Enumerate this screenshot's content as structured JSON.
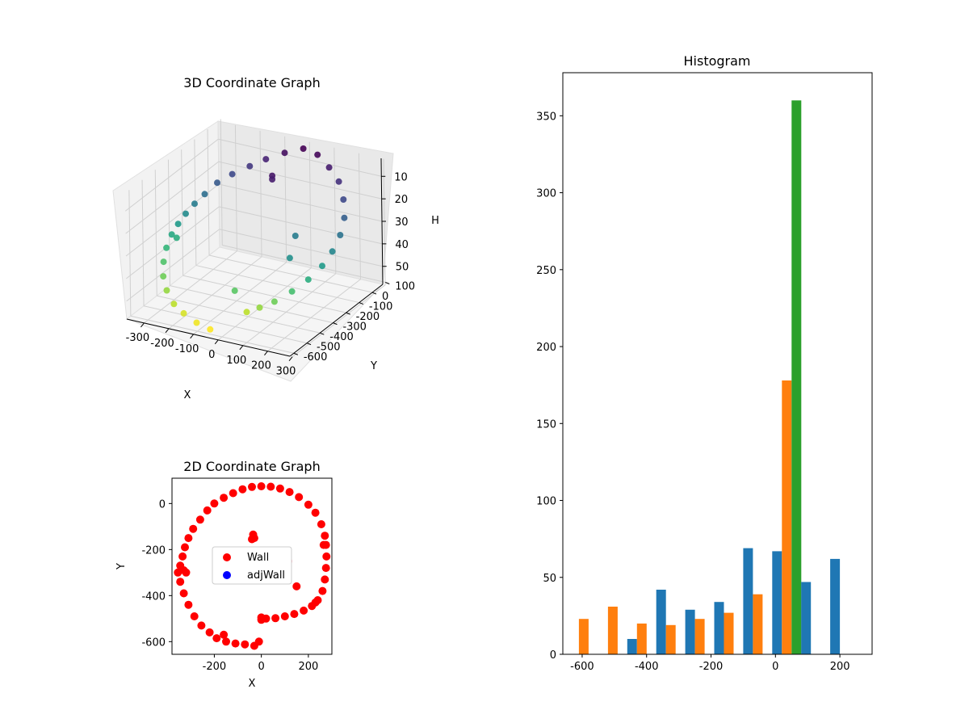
{
  "chart_data": [
    {
      "type": "scatter",
      "projection": "3d",
      "title": "3D Coordinate Graph",
      "xlabel": "X",
      "ylabel": "Y",
      "zlabel": "H",
      "xticks": [
        -300,
        -200,
        -100,
        0,
        100,
        200,
        300
      ],
      "yticks": [
        100,
        0,
        -100,
        -200,
        -300,
        -400,
        -500,
        -600
      ],
      "zticks": [
        10,
        20,
        30,
        40,
        50
      ],
      "xlim": [
        -370,
        290
      ],
      "ylim": [
        -630,
        80
      ],
      "zlim": [
        2,
        58
      ],
      "zaxis_inverted": true,
      "colormap": "viridis",
      "grid": true,
      "points": [
        [
          -20,
          70,
          5
        ],
        [
          -80,
          40,
          7
        ],
        [
          -140,
          10,
          10
        ],
        [
          -190,
          -20,
          13
        ],
        [
          -240,
          -60,
          16
        ],
        [
          -280,
          -100,
          19
        ],
        [
          -310,
          -140,
          23
        ],
        [
          -330,
          -180,
          26
        ],
        [
          -345,
          -220,
          29
        ],
        [
          -355,
          -260,
          32
        ],
        [
          -360,
          -300,
          35
        ],
        [
          -350,
          -360,
          38
        ],
        [
          -330,
          -420,
          41
        ],
        [
          -300,
          -480,
          44
        ],
        [
          -260,
          -530,
          47
        ],
        [
          -210,
          -570,
          50
        ],
        [
          -160,
          -590,
          52
        ],
        [
          -100,
          -605,
          54
        ],
        [
          -40,
          -615,
          55
        ],
        [
          40,
          65,
          6
        ],
        [
          100,
          40,
          9
        ],
        [
          160,
          0,
          12
        ],
        [
          210,
          -60,
          16
        ],
        [
          250,
          -130,
          20
        ],
        [
          270,
          -200,
          24
        ],
        [
          275,
          -270,
          28
        ],
        [
          265,
          -330,
          32
        ],
        [
          240,
          -390,
          36
        ],
        [
          200,
          -440,
          40
        ],
        [
          150,
          -480,
          44
        ],
        [
          100,
          -500,
          47
        ],
        [
          50,
          -505,
          50
        ],
        [
          -35,
          -140,
          8
        ],
        [
          -30,
          -150,
          9
        ],
        [
          150,
          -360,
          30
        ],
        [
          0,
          -500,
          42
        ],
        [
          -340,
          -300,
          36
        ],
        [
          115,
          -250,
          26
        ]
      ]
    },
    {
      "type": "scatter",
      "title": "2D Coordinate Graph",
      "xlabel": "X",
      "ylabel": "Y",
      "xlim": [
        -380,
        300
      ],
      "ylim": [
        -655,
        110
      ],
      "xticks": [
        -200,
        0,
        200
      ],
      "yticks": [
        0,
        -200,
        -400,
        -600
      ],
      "legend": "center",
      "series": [
        {
          "name": "Wall",
          "color": "#ff0000",
          "points": [
            [
              0,
              75
            ],
            [
              -40,
              72
            ],
            [
              -80,
              62
            ],
            [
              -120,
              45
            ],
            [
              -160,
              25
            ],
            [
              -200,
              0
            ],
            [
              -230,
              -30
            ],
            [
              -260,
              -70
            ],
            [
              -290,
              -110
            ],
            [
              -310,
              -150
            ],
            [
              -325,
              -190
            ],
            [
              -335,
              -230
            ],
            [
              -345,
              -270
            ],
            [
              -355,
              -300
            ],
            [
              -345,
              -340
            ],
            [
              -330,
              -390
            ],
            [
              -310,
              -440
            ],
            [
              -285,
              -490
            ],
            [
              -255,
              -530
            ],
            [
              -220,
              -560
            ],
            [
              -190,
              -585
            ],
            [
              -150,
              -600
            ],
            [
              -110,
              -608
            ],
            [
              -70,
              -612
            ],
            [
              -30,
              -618
            ],
            [
              -10,
              -600
            ],
            [
              40,
              73
            ],
            [
              80,
              65
            ],
            [
              120,
              50
            ],
            [
              160,
              28
            ],
            [
              200,
              -5
            ],
            [
              230,
              -40
            ],
            [
              255,
              -90
            ],
            [
              270,
              -140
            ],
            [
              275,
              -180
            ],
            [
              277,
              -230
            ],
            [
              275,
              -280
            ],
            [
              270,
              -330
            ],
            [
              260,
              -380
            ],
            [
              240,
              -420
            ],
            [
              215,
              -445
            ],
            [
              180,
              -465
            ],
            [
              140,
              -480
            ],
            [
              100,
              -490
            ],
            [
              60,
              -498
            ],
            [
              20,
              -500
            ],
            [
              0,
              -495
            ],
            [
              -35,
              -135
            ],
            [
              -30,
              -150
            ],
            [
              -40,
              -155
            ],
            [
              -330,
              -290
            ],
            [
              -320,
              -300
            ],
            [
              150,
              -360
            ],
            [
              230,
              -430
            ],
            [
              265,
              -180
            ],
            [
              -160,
              -570
            ],
            [
              0,
              -505
            ]
          ]
        },
        {
          "name": "adjWall",
          "color": "#0000ff",
          "points": []
        }
      ],
      "highlight_points": [
        [
          115,
          -250
        ]
      ]
    },
    {
      "type": "bar",
      "title": "Histogram",
      "xlim": [
        -660,
        300
      ],
      "ylim": [
        0,
        378
      ],
      "xticks": [
        -600,
        -400,
        -200,
        0,
        200
      ],
      "yticks": [
        0,
        50,
        100,
        150,
        200,
        250,
        300,
        350
      ],
      "bin_edges": [
        -640,
        -550,
        -460,
        -370,
        -280,
        -190,
        -100,
        -10,
        80,
        170,
        260
      ],
      "series": [
        {
          "color": "#1f77b4",
          "values": [
            0,
            0,
            10,
            42,
            29,
            34,
            69,
            67,
            47,
            62
          ]
        },
        {
          "color": "#ff7f0e",
          "values": [
            23,
            31,
            20,
            19,
            23,
            27,
            39,
            178,
            0,
            0
          ]
        },
        {
          "color": "#2ca02c",
          "values": [
            0,
            0,
            0,
            0,
            0,
            0,
            0,
            360,
            0,
            0
          ]
        }
      ]
    }
  ]
}
